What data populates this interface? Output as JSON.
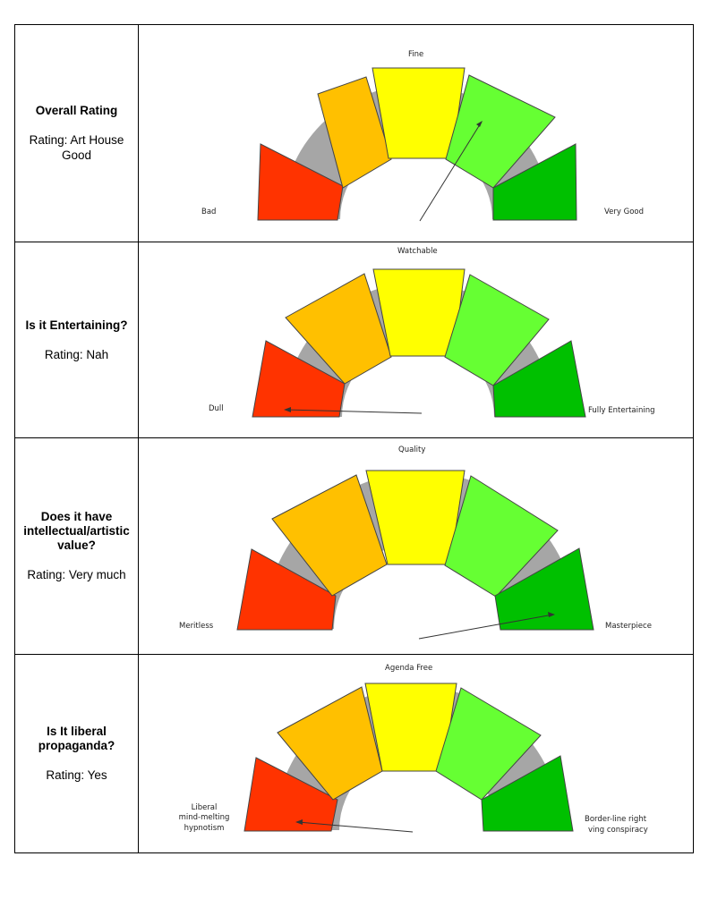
{
  "rows": [
    {
      "title": "Overall Rating",
      "rating": "Rating: Art House Good",
      "labels": {
        "top": "Fine",
        "left": "Bad",
        "right": "Very Good"
      },
      "pointer_segment": "light-green"
    },
    {
      "title": "Is it Entertaining?",
      "rating": "Rating: Nah",
      "labels": {
        "top": "Watchable",
        "left": "Dull",
        "right": "Fully Entertaining"
      },
      "pointer_segment": "red"
    },
    {
      "title": "Does it have intellectual/artistic value?",
      "rating": "Rating: Very much",
      "labels": {
        "top": "Quality",
        "left": "Meritless",
        "right": "Masterpiece"
      },
      "pointer_segment": "dark-green"
    },
    {
      "title": "Is It liberal propaganda?",
      "rating": "Rating: Yes",
      "labels": {
        "top": "Agenda Free",
        "left_line1": "Liberal",
        "left_line2": "mind-melting",
        "left_line3": "hypnotism",
        "right_line1": "Border-line right",
        "right_line2": "ving conspiracy"
      },
      "pointer_segment": "red"
    }
  ],
  "colors": {
    "red": "#ff3300",
    "orange": "#ffc000",
    "yellow": "#ffff00",
    "light_green": "#66ff33",
    "dark_green": "#00c000",
    "arc": "#a6a6a6"
  }
}
